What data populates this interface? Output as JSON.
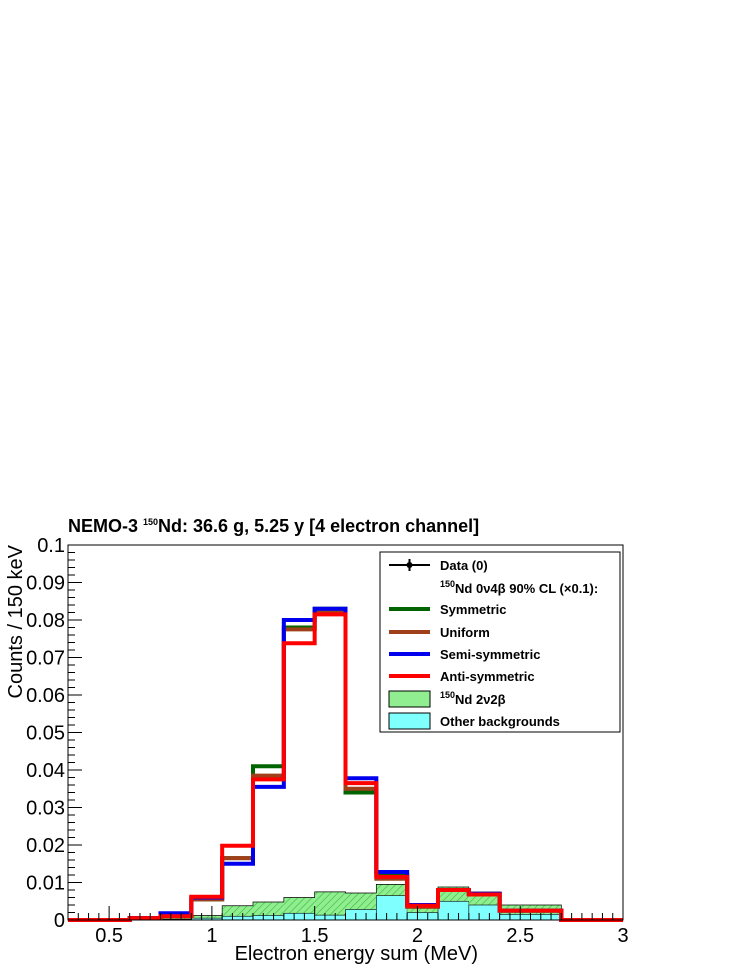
{
  "chart_data": {
    "type": "histogram",
    "title_parts": {
      "pre": "NEMO-3 ",
      "sup": "150",
      "post": "Nd: 36.6 g, 5.25 y [4 electron channel]"
    },
    "xlabel": "Electron energy sum (MeV)",
    "ylabel": "Counts / 150 keV",
    "xlim": [
      0.3,
      3.0
    ],
    "ylim": [
      0,
      0.1
    ],
    "x_ticks": [
      "0.5",
      "1",
      "1.5",
      "2",
      "2.5",
      "3"
    ],
    "y_ticks": [
      "0",
      "0.01",
      "0.02",
      "0.03",
      "0.04",
      "0.05",
      "0.06",
      "0.07",
      "0.08",
      "0.09",
      "0.1"
    ],
    "bin_edges": [
      0.3,
      0.45,
      0.6,
      0.75,
      0.9,
      1.05,
      1.2,
      1.35,
      1.5,
      1.65,
      1.8,
      1.95,
      2.1,
      2.25,
      2.4,
      2.55,
      2.7,
      2.85,
      3.0
    ],
    "colors": {
      "symmetric": "#006400",
      "uniform": "#a0401a",
      "semi_symmetric": "#0000ee",
      "anti_symmetric": "#ff0000",
      "nd_2v2b_fill": "#90ee90",
      "nd_2v2b_hatch": "#33bb33",
      "other_bkg_fill": "#80ffff"
    },
    "series": [
      {
        "name": "Other backgrounds",
        "kind": "filled",
        "values": [
          0,
          0,
          0,
          0.0002,
          0.0005,
          0.001,
          0.0012,
          0.0018,
          0.0013,
          0.0028,
          0.0065,
          0.002,
          0.005,
          0.004,
          0.0015,
          0.0015,
          0,
          0
        ]
      },
      {
        "name": "150Nd 2v2b (stacked total)",
        "kind": "filled",
        "values": [
          0,
          0,
          0,
          0.0005,
          0.0012,
          0.0038,
          0.0048,
          0.006,
          0.0075,
          0.0072,
          0.0095,
          0.0035,
          0.0088,
          0.0075,
          0.004,
          0.004,
          0,
          0
        ]
      },
      {
        "name": "Symmetric",
        "kind": "line",
        "values": [
          0,
          0,
          0.0005,
          0.001,
          0.0055,
          0.0165,
          0.041,
          0.078,
          0.083,
          0.034,
          0.012,
          0.004,
          0.008,
          0.007,
          0.0025,
          0.0025,
          0,
          0
        ]
      },
      {
        "name": "Uniform",
        "kind": "line",
        "values": [
          0,
          0,
          0.0005,
          0.001,
          0.0055,
          0.0165,
          0.0385,
          0.0775,
          0.082,
          0.035,
          0.011,
          0.0035,
          0.008,
          0.007,
          0.0025,
          0.0025,
          0,
          0
        ]
      },
      {
        "name": "Semi-symmetric",
        "kind": "line",
        "values": [
          0,
          0,
          0.0005,
          0.0018,
          0.006,
          0.015,
          0.0355,
          0.08,
          0.083,
          0.0378,
          0.0128,
          0.004,
          0.008,
          0.007,
          0.0025,
          0.0025,
          0,
          0
        ]
      },
      {
        "name": "Anti-symmetric",
        "kind": "line",
        "values": [
          0,
          0,
          0.0005,
          0.001,
          0.0062,
          0.0198,
          0.0375,
          0.0738,
          0.0815,
          0.0365,
          0.0115,
          0.0038,
          0.008,
          0.0068,
          0.0025,
          0.0025,
          0,
          0
        ]
      }
    ],
    "legend": {
      "placement": "top-right",
      "entries": [
        {
          "key": "data",
          "label": "Data (0)",
          "style": "marker"
        },
        {
          "key": "header",
          "label_parts": {
            "sup": "150",
            "post": "Nd 0ν4β 90% CL (×0.1):"
          },
          "style": "none"
        },
        {
          "key": "symmetric",
          "label": "Symmetric",
          "style": "line"
        },
        {
          "key": "uniform",
          "label": "Uniform",
          "style": "line"
        },
        {
          "key": "semi_symmetric",
          "label": "Semi-symmetric",
          "style": "line"
        },
        {
          "key": "anti_symmetric",
          "label": "Anti-symmetric",
          "style": "line"
        },
        {
          "key": "nd_2v2b",
          "label_parts": {
            "sup": "150",
            "post": "Nd 2ν2β"
          },
          "style": "box"
        },
        {
          "key": "other",
          "label": "Other backgrounds",
          "style": "box"
        }
      ]
    }
  }
}
